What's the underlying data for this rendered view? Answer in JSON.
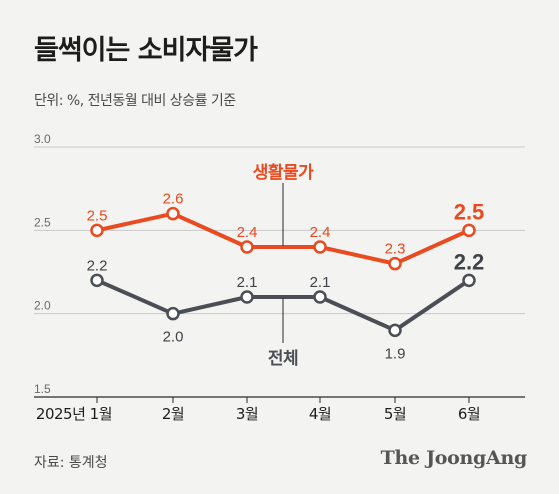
{
  "title": "들썩이는 소비자물가",
  "unit": "단위: %, 전년동월 대비 상승률 기준",
  "source": "자료: 통계청",
  "logo": "The JoongAng",
  "chart_data": {
    "type": "line",
    "categories": [
      "2025년 1월",
      "2월",
      "3월",
      "4월",
      "5월",
      "6월"
    ],
    "ylim": [
      1.5,
      3.0
    ],
    "yticks": [
      "1.5",
      "2.0",
      "2.5",
      "3.0"
    ],
    "grid": true,
    "series": [
      {
        "name": "생활물가",
        "color": "#ea4a1f",
        "values": [
          2.5,
          2.6,
          2.4,
          2.4,
          2.3,
          2.5
        ],
        "labels": [
          "2.5",
          "2.6",
          "2.4",
          "2.4",
          "2.3",
          "2.5"
        ]
      },
      {
        "name": "전체",
        "color": "#4b4f55",
        "values": [
          2.2,
          2.0,
          2.1,
          2.1,
          1.9,
          2.2
        ],
        "labels": [
          "2.2",
          "2.0",
          "2.1",
          "2.1",
          "1.9",
          "2.2"
        ]
      }
    ]
  }
}
